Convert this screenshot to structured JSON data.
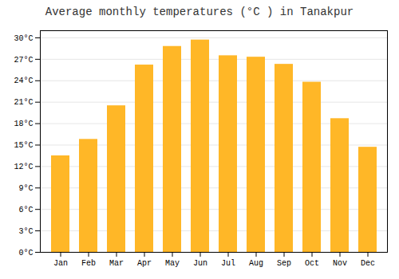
{
  "chart_data": {
    "type": "bar",
    "title": "Average monthly temperatures (°C ) in Tanakpur",
    "categories": [
      "Jan",
      "Feb",
      "Mar",
      "Apr",
      "May",
      "Jun",
      "Jul",
      "Aug",
      "Sep",
      "Oct",
      "Nov",
      "Dec"
    ],
    "values": [
      13.5,
      15.8,
      20.5,
      26.2,
      28.8,
      29.7,
      27.5,
      27.3,
      26.3,
      23.8,
      18.7,
      14.7
    ],
    "color": "#FFB727",
    "ylim": [
      0,
      31
    ],
    "yticks": [
      {
        "value": 0,
        "label": "0°C"
      },
      {
        "value": 3,
        "label": "3°C"
      },
      {
        "value": 6,
        "label": "6°C"
      },
      {
        "value": 9,
        "label": "9°C"
      },
      {
        "value": 12,
        "label": "12°C"
      },
      {
        "value": 15,
        "label": "15°C"
      },
      {
        "value": 18,
        "label": "18°C"
      },
      {
        "value": 21,
        "label": "21°C"
      },
      {
        "value": 24,
        "label": "24°C"
      },
      {
        "value": 27,
        "label": "27°C"
      },
      {
        "value": 30,
        "label": "30°C"
      }
    ],
    "grid": true
  }
}
